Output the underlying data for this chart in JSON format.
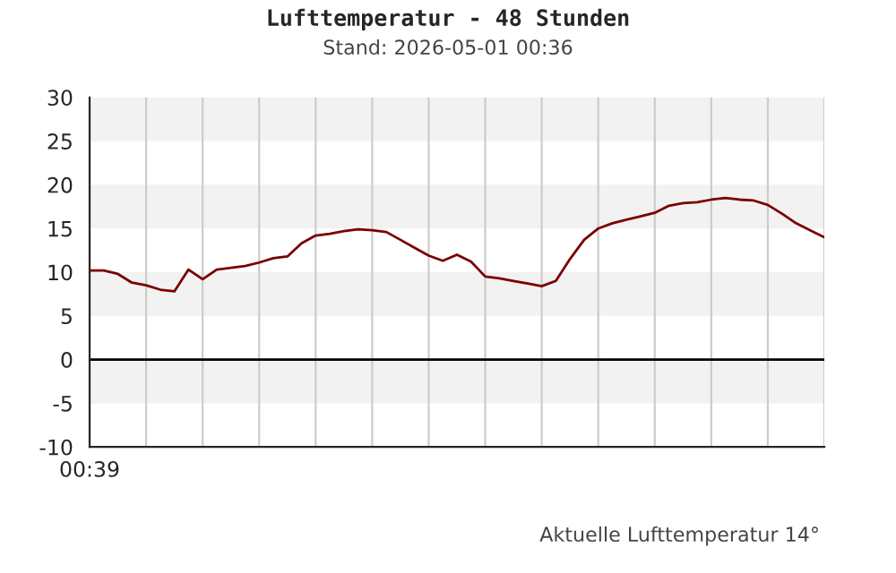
{
  "chart_data": {
    "type": "line",
    "title": "Lufttemperatur - 48 Stunden",
    "subtitle": "Stand: 2026-05-01 00:36",
    "annotations": [
      "00:39",
      "Aktuelle Lufttemperatur 14°"
    ],
    "categories": [
      null,
      null,
      null,
      null,
      null,
      null,
      null,
      null,
      null,
      null,
      null,
      null,
      null,
      null,
      null,
      null,
      null,
      null,
      null,
      null,
      null,
      null,
      null,
      null,
      null,
      null,
      null,
      null,
      null,
      null,
      null,
      null,
      null,
      null,
      null,
      null,
      null,
      null,
      null,
      null,
      null,
      null,
      null,
      null,
      null,
      null,
      null,
      null,
      null,
      null,
      null,
      null,
      null
    ],
    "series": [
      {
        "color": "#7a0000",
        "values": [
          10.2,
          10.2,
          9.8,
          8.8,
          8.5,
          8.0,
          7.8,
          10.3,
          9.2,
          10.3,
          10.5,
          10.7,
          11.1,
          11.6,
          11.8,
          13.3,
          14.2,
          14.4,
          14.7,
          14.9,
          14.8,
          14.6,
          13.7,
          12.8,
          11.9,
          11.3,
          12.0,
          11.2,
          9.5,
          9.3,
          9.0,
          8.7,
          8.4,
          9.0,
          11.5,
          13.7,
          15.0,
          15.6,
          16.0,
          16.4,
          16.8,
          17.6,
          17.9,
          18.0,
          18.3,
          18.5,
          18.3,
          18.2,
          17.7,
          16.7,
          15.6,
          14.8,
          14.0
        ]
      }
    ],
    "ylim": [
      -10,
      30
    ],
    "yticks": [
      -10,
      -5,
      0,
      5,
      10,
      15,
      20,
      25,
      30
    ],
    "grid": "x",
    "legend": false,
    "marker": "none",
    "line_style": "solid",
    "bands": [
      {
        "axis": "y",
        "from": 25,
        "to": 30,
        "color": "#f2f2f2"
      },
      {
        "axis": "y",
        "from": 15,
        "to": 20,
        "color": "#f2f2f2"
      },
      {
        "axis": "y",
        "from": 5,
        "to": 10,
        "color": "#f2f2f2"
      },
      {
        "axis": "y",
        "from": -5,
        "to": 0,
        "color": "#f2f2f2"
      }
    ],
    "ref_lines": [
      {
        "axis": "y",
        "value": 0,
        "color": "#000000",
        "line_style": "solid"
      }
    ]
  }
}
